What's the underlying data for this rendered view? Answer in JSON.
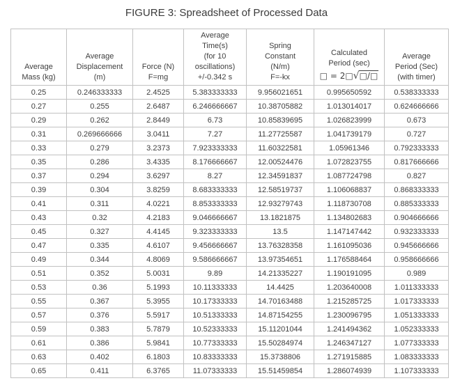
{
  "title": "FIGURE 3: Spreadsheet of Processed Data",
  "colors": {
    "background": "#ffffff",
    "text": "#3e3e3e",
    "grid_border": "#c1c1c1"
  },
  "chart_data": {
    "type": "table",
    "title": "FIGURE 3: Spreadsheet of Processed Data",
    "grid": true,
    "columns": [
      {
        "id": "average_mass",
        "label": "Average Mass (kg)",
        "header_lines": [
          "Average",
          "Mass (kg)"
        ]
      },
      {
        "id": "average_displacement",
        "label": "Average Displacement (m)",
        "header_lines": [
          "Average",
          "Displacement",
          "(m)"
        ]
      },
      {
        "id": "force",
        "label": "Force (N) F=mg",
        "header_lines": [
          "Force (N)",
          "F=mg"
        ]
      },
      {
        "id": "average_time",
        "label": "Average Time(s) (for 10 oscillations) +/-0.342 s",
        "header_lines": [
          "Average",
          "Time(s)",
          "(for 10",
          "oscillations)",
          "+/-0.342 s"
        ]
      },
      {
        "id": "spring_constant",
        "label": "Spring Constant (N/m) F=-kx",
        "header_lines": [
          "Spring",
          "Constant",
          "(N/m)",
          "F=-kx"
        ]
      },
      {
        "id": "calculated_period",
        "label": "Calculated Period (sec) □ = 2□√□/□",
        "header_lines": [
          "Calculated",
          "Period (sec)"
        ],
        "formula": {
          "prefix": "□ = 2□",
          "radical": "√",
          "radicand": "□/□"
        }
      },
      {
        "id": "average_period",
        "label": "Average Period (Sec) (with timer)",
        "header_lines": [
          "Average",
          "Period (Sec)",
          "(with timer)"
        ]
      }
    ],
    "rows": [
      [
        "0.25",
        "0.246333333",
        "2.4525",
        "5.383333333",
        "9.956021651",
        "0.995650592",
        "0.538333333"
      ],
      [
        "0.27",
        "0.255",
        "2.6487",
        "6.246666667",
        "10.38705882",
        "1.013014017",
        "0.624666666"
      ],
      [
        "0.29",
        "0.262",
        "2.8449",
        "6.73",
        "10.85839695",
        "1.026823999",
        "0.673"
      ],
      [
        "0.31",
        "0.269666666",
        "3.0411",
        "7.27",
        "11.27725587",
        "1.041739179",
        "0.727"
      ],
      [
        "0.33",
        "0.279",
        "3.2373",
        "7.923333333",
        "11.60322581",
        "1.05961346",
        "0.792333333"
      ],
      [
        "0.35",
        "0.286",
        "3.4335",
        "8.176666667",
        "12.00524476",
        "1.072823755",
        "0.817666666"
      ],
      [
        "0.37",
        "0.294",
        "3.6297",
        "8.27",
        "12.34591837",
        "1.087724798",
        "0.827"
      ],
      [
        "0.39",
        "0.304",
        "3.8259",
        "8.683333333",
        "12.58519737",
        "1.106068837",
        "0.868333333"
      ],
      [
        "0.41",
        "0.311",
        "4.0221",
        "8.853333333",
        "12.93279743",
        "1.118730708",
        "0.885333333"
      ],
      [
        "0.43",
        "0.32",
        "4.2183",
        "9.046666667",
        "13.1821875",
        "1.134802683",
        "0.904666666"
      ],
      [
        "0.45",
        "0.327",
        "4.4145",
        "9.323333333",
        "13.5",
        "1.147147442",
        "0.932333333"
      ],
      [
        "0.47",
        "0.335",
        "4.6107",
        "9.456666667",
        "13.76328358",
        "1.161095036",
        "0.945666666"
      ],
      [
        "0.49",
        "0.344",
        "4.8069",
        "9.586666667",
        "13.97354651",
        "1.176588464",
        "0.958666666"
      ],
      [
        "0.51",
        "0.352",
        "5.0031",
        "9.89",
        "14.21335227",
        "1.190191095",
        "0.989"
      ],
      [
        "0.53",
        "0.36",
        "5.1993",
        "10.11333333",
        "14.4425",
        "1.203640008",
        "1.011333333"
      ],
      [
        "0.55",
        "0.367",
        "5.3955",
        "10.17333333",
        "14.70163488",
        "1.215285725",
        "1.017333333"
      ],
      [
        "0.57",
        "0.376",
        "5.5917",
        "10.51333333",
        "14.87154255",
        "1.230096795",
        "1.051333333"
      ],
      [
        "0.59",
        "0.383",
        "5.7879",
        "10.52333333",
        "15.11201044",
        "1.241494362",
        "1.052333333"
      ],
      [
        "0.61",
        "0.386",
        "5.9841",
        "10.77333333",
        "15.50284974",
        "1.246347127",
        "1.077333333"
      ],
      [
        "0.63",
        "0.402",
        "6.1803",
        "10.83333333",
        "15.3738806",
        "1.271915885",
        "1.083333333"
      ],
      [
        "0.65",
        "0.411",
        "6.3765",
        "11.07333333",
        "15.51459854",
        "1.286074939",
        "1.107333333"
      ]
    ]
  }
}
